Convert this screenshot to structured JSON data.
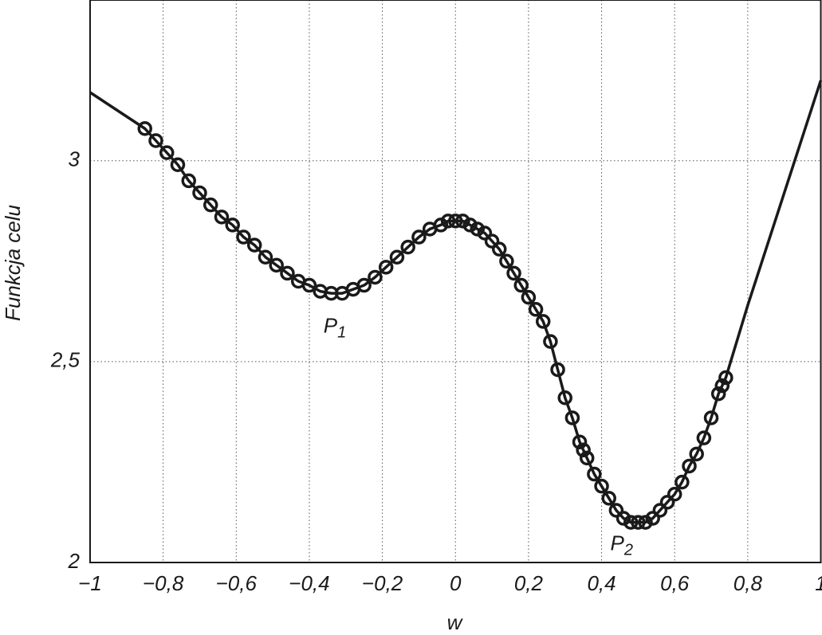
{
  "chart_data": {
    "type": "line",
    "xlabel": "w",
    "ylabel": "Funkcja celu",
    "xlim": [
      -1,
      1
    ],
    "ylim": [
      2,
      3.4
    ],
    "xticks": [
      {
        "value": -1,
        "label": "−1"
      },
      {
        "value": -0.8,
        "label": "−0,8"
      },
      {
        "value": -0.6,
        "label": "−0,6"
      },
      {
        "value": -0.4,
        "label": "−0,4"
      },
      {
        "value": -0.2,
        "label": "−0,2"
      },
      0,
      {
        "value": 0.2,
        "label": "0,2"
      },
      {
        "value": 0.4,
        "label": "0,4"
      },
      {
        "value": 0.6,
        "label": "0,6"
      },
      {
        "value": 0.8,
        "label": "0,8"
      },
      1
    ],
    "yticks": [
      2,
      {
        "value": 2.5,
        "label": "2,5"
      },
      3
    ],
    "grid": true,
    "series": [
      {
        "color": "#1a1a1a",
        "marker": "none",
        "x": [
          -1,
          -0.9,
          -0.85,
          -0.82,
          -0.79,
          -0.76,
          -0.73,
          -0.7,
          -0.67,
          -0.64,
          -0.61,
          -0.58,
          -0.55,
          -0.52,
          -0.49,
          -0.46,
          -0.43,
          -0.4,
          -0.37,
          -0.34,
          -0.31,
          -0.28,
          -0.25,
          -0.22,
          -0.19,
          -0.16,
          -0.13,
          -0.1,
          -0.07,
          -0.04,
          -0.02,
          0,
          0.02,
          0.04,
          0.06,
          0.08,
          0.1,
          0.12,
          0.14,
          0.16,
          0.18,
          0.2,
          0.22,
          0.24,
          0.26,
          0.28,
          0.3,
          0.32,
          0.34,
          0.35,
          0.36,
          0.38,
          0.4,
          0.42,
          0.44,
          0.46,
          0.48,
          0.5,
          0.52,
          0.54,
          0.56,
          0.58,
          0.6,
          0.62,
          0.64,
          0.66,
          0.68,
          0.7,
          0.72,
          0.73,
          0.74,
          0.8,
          0.9,
          1
        ],
        "values": [
          3.17,
          3.11,
          3.08,
          3.05,
          3.02,
          2.99,
          2.95,
          2.92,
          2.89,
          2.86,
          2.84,
          2.81,
          2.79,
          2.76,
          2.74,
          2.72,
          2.7,
          2.69,
          2.675,
          2.67,
          2.67,
          2.68,
          2.69,
          2.71,
          2.735,
          2.76,
          2.785,
          2.81,
          2.83,
          2.84,
          2.85,
          2.85,
          2.85,
          2.84,
          2.83,
          2.82,
          2.8,
          2.78,
          2.75,
          2.72,
          2.69,
          2.66,
          2.63,
          2.6,
          2.55,
          2.48,
          2.41,
          2.36,
          2.3,
          2.28,
          2.26,
          2.22,
          2.19,
          2.16,
          2.13,
          2.11,
          2.1,
          2.1,
          2.1,
          2.11,
          2.13,
          2.15,
          2.17,
          2.2,
          2.24,
          2.27,
          2.31,
          2.36,
          2.42,
          2.44,
          2.46,
          2.64,
          2.92,
          3.2
        ]
      },
      {
        "color": "#1a1a1a",
        "marker": "circle",
        "x": [
          -0.85,
          -0.82,
          -0.79,
          -0.76,
          -0.73,
          -0.7,
          -0.67,
          -0.64,
          -0.61,
          -0.58,
          -0.55,
          -0.52,
          -0.49,
          -0.46,
          -0.43,
          -0.4,
          -0.37,
          -0.34,
          -0.31,
          -0.28,
          -0.25,
          -0.22,
          -0.19,
          -0.16,
          -0.13,
          -0.1,
          -0.07,
          -0.04,
          -0.02,
          0,
          0.02,
          0.04,
          0.06,
          0.08,
          0.1,
          0.12,
          0.14,
          0.16,
          0.18,
          0.2,
          0.22,
          0.24,
          0.26,
          0.28,
          0.3,
          0.32,
          0.34,
          0.35,
          0.36,
          0.38,
          0.4,
          0.42,
          0.44,
          0.46,
          0.48,
          0.5,
          0.52,
          0.54,
          0.56,
          0.58,
          0.6,
          0.62,
          0.64,
          0.66,
          0.68,
          0.7,
          0.72,
          0.73,
          0.74
        ],
        "values": [
          3.08,
          3.05,
          3.02,
          2.99,
          2.95,
          2.92,
          2.89,
          2.86,
          2.84,
          2.81,
          2.79,
          2.76,
          2.74,
          2.72,
          2.7,
          2.69,
          2.675,
          2.67,
          2.67,
          2.68,
          2.69,
          2.71,
          2.735,
          2.76,
          2.785,
          2.81,
          2.83,
          2.84,
          2.85,
          2.85,
          2.85,
          2.84,
          2.83,
          2.82,
          2.8,
          2.78,
          2.75,
          2.72,
          2.69,
          2.66,
          2.63,
          2.6,
          2.55,
          2.48,
          2.41,
          2.36,
          2.3,
          2.28,
          2.26,
          2.22,
          2.19,
          2.16,
          2.13,
          2.11,
          2.1,
          2.1,
          2.1,
          2.11,
          2.13,
          2.15,
          2.17,
          2.2,
          2.24,
          2.27,
          2.31,
          2.36,
          2.42,
          2.44,
          2.46
        ]
      }
    ],
    "annotations": [
      {
        "text": "P",
        "sub": "1",
        "x": -0.33,
        "y": 2.586
      },
      {
        "text": "P",
        "sub": "2",
        "x": 0.455,
        "y": 2.045
      }
    ]
  }
}
